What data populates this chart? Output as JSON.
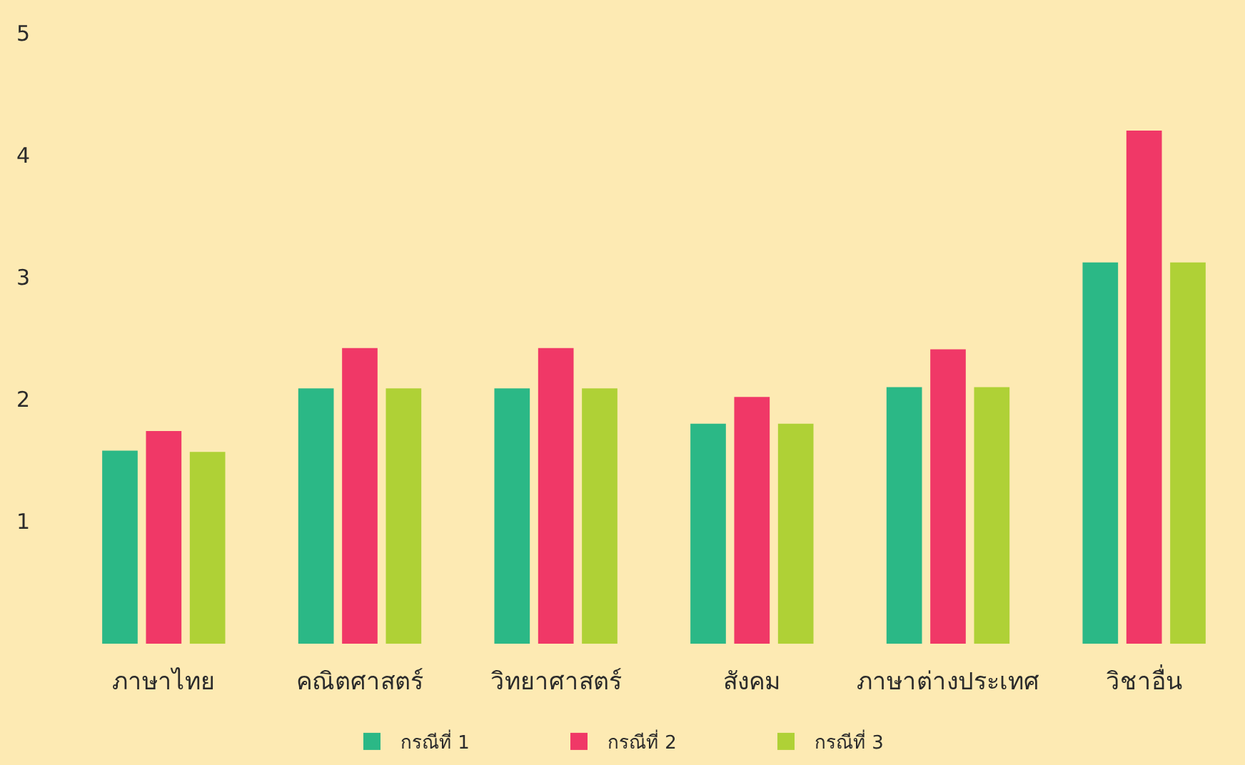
{
  "chart_data": {
    "type": "bar",
    "categories": [
      "ภาษาไทย",
      "คณิตศาสตร์",
      "วิทยาศาสตร์",
      "สังคม",
      "ภาษาต่างประเทศ",
      "วิชาอื่น"
    ],
    "series": [
      {
        "name": "กรณีที่ 1",
        "color": "#2bb886",
        "values": [
          1.58,
          2.09,
          2.09,
          1.8,
          2.1,
          3.12
        ]
      },
      {
        "name": "กรณีที่ 2",
        "color": "#f03867",
        "values": [
          1.74,
          2.42,
          2.42,
          2.02,
          2.41,
          4.2
        ]
      },
      {
        "name": "กรณีที่ 3",
        "color": "#afd136",
        "values": [
          1.57,
          2.09,
          2.09,
          1.8,
          2.1,
          3.12
        ]
      }
    ],
    "ylim": [
      0,
      5
    ],
    "yticks": [
      1,
      2,
      3,
      4,
      5
    ],
    "legend": "bottom"
  }
}
